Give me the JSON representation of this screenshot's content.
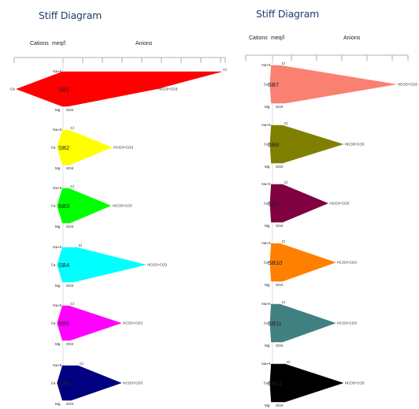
{
  "panels": [
    {
      "title": "Stiff Diagram",
      "header": {
        "cations": "Cations",
        "unit": "meq/l",
        "anions": "Anions"
      },
      "samples": [
        {
          "label": "SB1",
          "color": "#ff0000",
          "values": {
            "Na+K": 0.05,
            "Cl": 13.6,
            "Ca": 4.0,
            "HCO3+CO3": 8.0,
            "Mg": 0.05,
            "SO4": 0.4
          }
        },
        {
          "label": "SB2",
          "color": "#ffff00",
          "values": {
            "Na+K": 0.05,
            "Cl": 0.5,
            "Ca": 0.5,
            "HCO3+CO3": 4.2,
            "Mg": 0.05,
            "SO4": 0.6
          }
        },
        {
          "label": "SB3",
          "color": "#00ff00",
          "values": {
            "Na+K": 0.05,
            "Cl": 0.5,
            "Ca": 0.5,
            "HCO3+CO3": 4.1,
            "Mg": 0.05,
            "SO4": 0.6
          }
        },
        {
          "label": "SB4",
          "color": "#00ffff",
          "values": {
            "Na+K": 0.05,
            "Cl": 1.2,
            "Ca": 0.5,
            "HCO3+CO3": 7.1,
            "Mg": 0.05,
            "SO4": 0.9
          }
        },
        {
          "label": "SB5",
          "color": "#ff00ff",
          "values": {
            "Na+K": 0.05,
            "Cl": 0.5,
            "Ca": 0.5,
            "HCO3+CO3": 5.0,
            "Mg": 0.05,
            "SO4": 0.6
          }
        },
        {
          "label": "SB6",
          "color": "#000080",
          "values": {
            "Na+K": 0.05,
            "Cl": 1.3,
            "Ca": 0.5,
            "HCO3+CO3": 5.0,
            "Mg": 0.05,
            "SO4": 0.7
          }
        }
      ]
    },
    {
      "title": "Stiff Diagram",
      "header": {
        "cations": "Cations",
        "unit": "meq/l",
        "anions": "Anions"
      },
      "samples": [
        {
          "label": "SB7",
          "color": "#fa8072",
          "values": {
            "Na+K": 0.05,
            "Cl": 0.3,
            "Ca": 0.1,
            "HCO3+CO3": 4.9,
            "Mg": 0.05,
            "SO4": 0.5
          }
        },
        {
          "label": "SB8",
          "color": "#808000",
          "values": {
            "Na+K": 0.05,
            "Cl": 0.4,
            "Ca": 0.1,
            "HCO3+CO3": 2.8,
            "Mg": 0.05,
            "SO4": 0.4
          }
        },
        {
          "label": "SB9",
          "color": "#800040",
          "values": {
            "Na+K": 0.05,
            "Cl": 0.4,
            "Ca": 0.1,
            "HCO3+CO3": 2.2,
            "Mg": 0.05,
            "SO4": 0.4
          }
        },
        {
          "label": "SB10",
          "color": "#ff8000",
          "values": {
            "Na+K": 0.05,
            "Cl": 0.3,
            "Ca": 0.1,
            "HCO3+CO3": 2.5,
            "Mg": 0.05,
            "SO4": 0.4
          }
        },
        {
          "label": "SB11",
          "color": "#408080",
          "values": {
            "Na+K": 0.05,
            "Cl": 0.3,
            "Ca": 0.1,
            "HCO3+CO3": 2.5,
            "Mg": 0.05,
            "SO4": 0.4
          }
        },
        {
          "label": "SB12",
          "color": "#000000",
          "values": {
            "Na+K": 0.05,
            "Cl": 0.5,
            "Ca": 0.1,
            "HCO3+CO3": 2.8,
            "Mg": 0.05,
            "SO4": 0.5
          }
        }
      ]
    }
  ],
  "ion_labels": {
    "na_k": "Na+K",
    "cl": "Cl",
    "ca": "Ca",
    "hco3": "HCO3+CO3",
    "mg": "Mg",
    "so4": "SO4"
  }
}
